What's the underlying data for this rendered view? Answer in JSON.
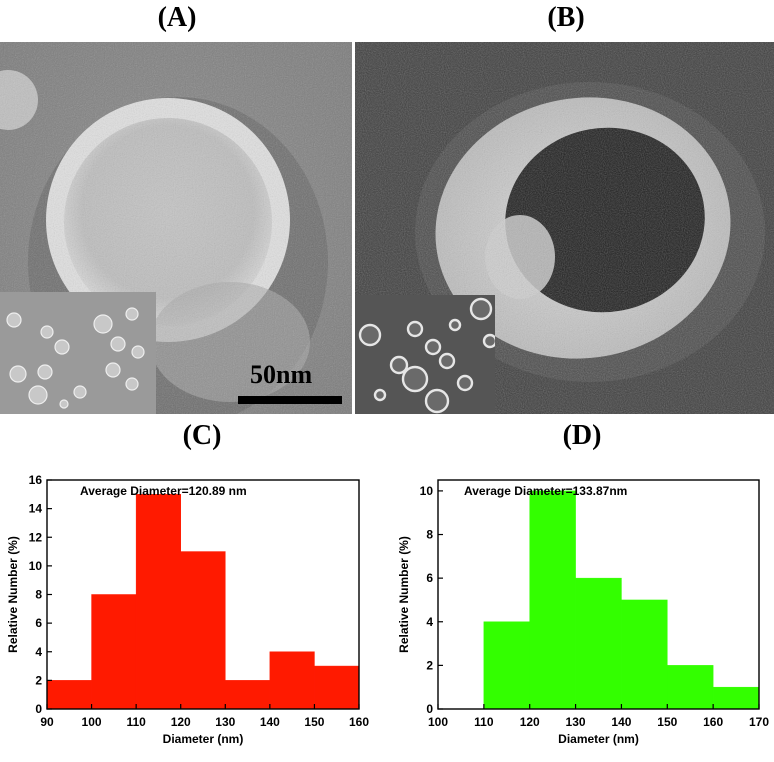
{
  "panels": {
    "a": {
      "label": "(A)",
      "scale_bar": "50nm"
    },
    "b": {
      "label": "(B)"
    },
    "c": {
      "label": "(C)"
    },
    "d": {
      "label": "(D)"
    }
  },
  "colors": {
    "c_bars": "#ff1a00",
    "d_bars": "#33ff00"
  },
  "chart_data": [
    {
      "type": "bar",
      "panel": "C",
      "categories": [
        "90-100",
        "100-110",
        "110-120",
        "120-130",
        "130-140",
        "140-150",
        "150-160"
      ],
      "bin_edges": [
        90,
        100,
        110,
        120,
        130,
        140,
        150,
        160
      ],
      "values": [
        2,
        8,
        15,
        11,
        2,
        4,
        3
      ],
      "xlabel": "Diameter (nm)",
      "ylabel": "Relative Number (%)",
      "xlim": [
        90,
        160
      ],
      "ylim": [
        0,
        16
      ],
      "xticks": [
        "90",
        "100",
        "110",
        "120",
        "130",
        "140",
        "150",
        "160"
      ],
      "yticks": [
        "0",
        "2",
        "4",
        "6",
        "8",
        "10",
        "12",
        "14",
        "16"
      ],
      "annotation": "Average Diameter=120.89 nm",
      "grid": false
    },
    {
      "type": "bar",
      "panel": "D",
      "categories": [
        "110-120",
        "120-130",
        "130-140",
        "140-150",
        "150-160",
        "160-170"
      ],
      "bin_edges": [
        110,
        120,
        130,
        140,
        150,
        160,
        170
      ],
      "values": [
        4,
        10,
        6,
        5,
        2,
        1
      ],
      "xlabel": "Diameter (nm)",
      "ylabel": "Relative Number (%)",
      "xlim": [
        100,
        170
      ],
      "ylim": [
        0,
        10.5
      ],
      "xticks": [
        "100",
        "110",
        "120",
        "130",
        "140",
        "150",
        "160",
        "170"
      ],
      "yticks": [
        "0",
        "2",
        "4",
        "6",
        "8",
        "10"
      ],
      "annotation": "Average Diameter=133.87nm",
      "grid": false
    }
  ]
}
